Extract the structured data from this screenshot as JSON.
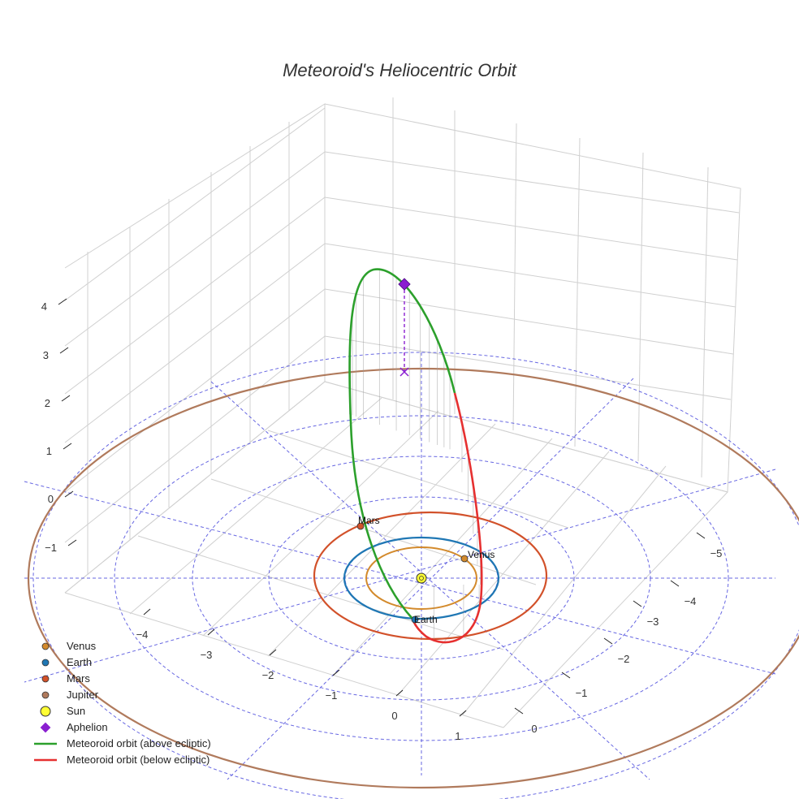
{
  "title": "Meteoroid's Heliocentric Orbit",
  "colors": {
    "venus": "#d38a2c",
    "earth": "#1f77b4",
    "mars": "#d2512a",
    "jupiter": "#b07a5c",
    "sun": "#ffff33",
    "aphelion": "#8a1fd0",
    "above": "#2ca02c",
    "below": "#e63030",
    "grid_circle": "#4d4ddd",
    "box_grid": "#cccccc"
  },
  "legend": [
    {
      "label": "Venus",
      "marker": "dot",
      "color": "#d38a2c"
    },
    {
      "label": "Earth",
      "marker": "dot",
      "color": "#1f77b4"
    },
    {
      "label": "Mars",
      "marker": "dot",
      "color": "#d2512a"
    },
    {
      "label": "Jupiter",
      "marker": "dot",
      "color": "#b07a5c"
    },
    {
      "label": "Sun",
      "marker": "sun",
      "color": "#ffff33"
    },
    {
      "label": "Aphelion",
      "marker": "diamond",
      "color": "#8a1fd0"
    },
    {
      "label": "Meteoroid orbit (above ecliptic)",
      "marker": "line",
      "color": "#2ca02c"
    },
    {
      "label": "Meteoroid orbit (below ecliptic)",
      "marker": "line",
      "color": "#e63030"
    }
  ],
  "chart_data": {
    "type": "line",
    "projection": "3d",
    "title": "Meteoroid's Heliocentric Orbit",
    "x_ticks": [
      "−4",
      "−3",
      "−2",
      "−1",
      "0",
      "1"
    ],
    "y_ticks": [
      "0",
      "−1",
      "−2",
      "−3",
      "−4",
      "−5"
    ],
    "z_ticks": [
      "−1",
      "0",
      "1",
      "2",
      "3",
      "4"
    ],
    "grid": true,
    "legend_position": "bottom-left",
    "planets": [
      {
        "name": "Venus",
        "orbit_radius": 0.72,
        "label": "Venus"
      },
      {
        "name": "Earth",
        "orbit_radius": 1.0,
        "label": "Earth"
      },
      {
        "name": "Mars",
        "orbit_radius": 1.52,
        "label": "Mars"
      },
      {
        "name": "Jupiter",
        "orbit_radius": 5.2
      }
    ],
    "ecliptic_grid_radii": [
      1,
      2,
      3,
      4,
      5
    ],
    "sun": {
      "x": 0,
      "y": 0,
      "z": 0
    },
    "aphelion": {
      "x": -0.2,
      "y": -3.6,
      "z": 3.9
    },
    "series": [
      {
        "name": "Meteoroid orbit (above ecliptic)",
        "color": "#2ca02c"
      },
      {
        "name": "Meteoroid orbit (below ecliptic)",
        "color": "#e63030"
      }
    ]
  }
}
